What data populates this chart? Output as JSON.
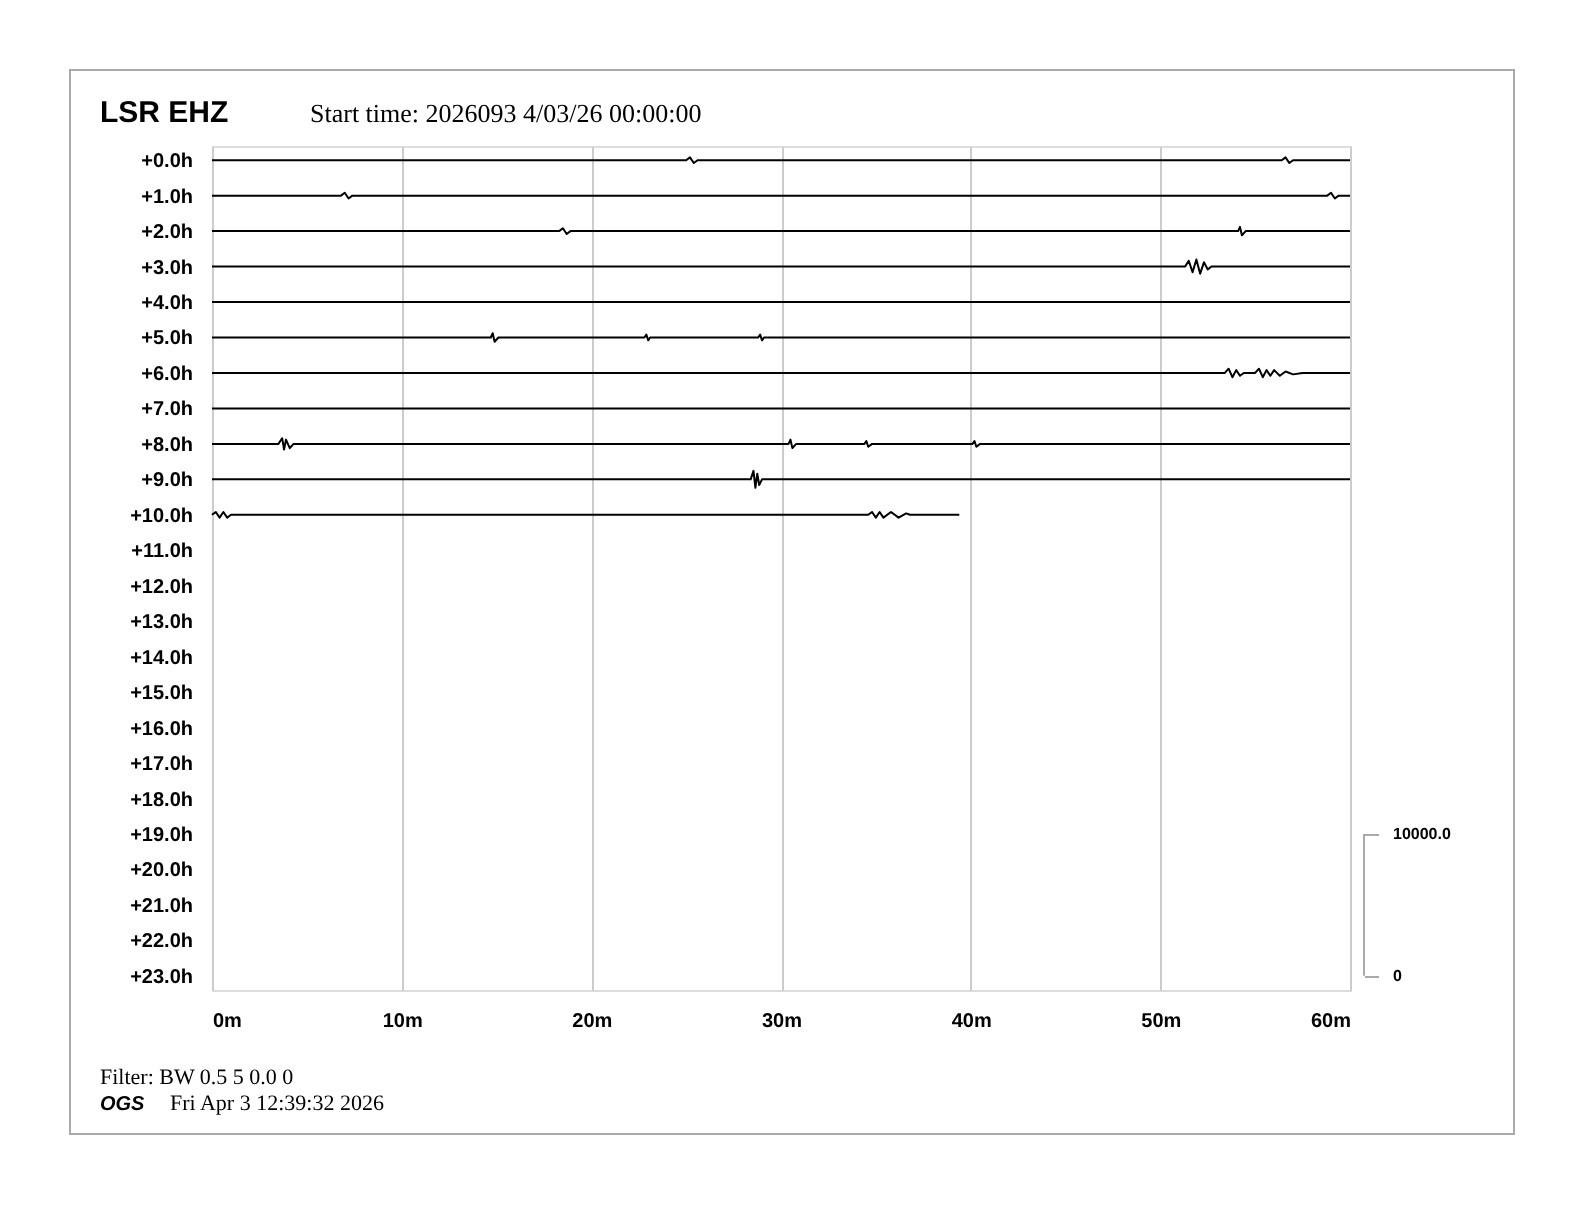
{
  "chart_data": {
    "type": "line",
    "title": "LSR EHZ",
    "subtitle": "Start time: 2026093  4/03/26 00:00:00",
    "annotations": [
      "Filter: BW 0.5 5 0.0 0",
      "OGS",
      "Fri Apr  3 12:39:32 2026"
    ],
    "xlim": [
      0,
      60
    ],
    "xticks": [
      {
        "value": 0,
        "label": "0m"
      },
      {
        "value": 10,
        "label": "10m"
      },
      {
        "value": 20,
        "label": "20m"
      },
      {
        "value": 30,
        "label": "30m"
      },
      {
        "value": 40,
        "label": "40m"
      },
      {
        "value": 50,
        "label": "50m"
      },
      {
        "value": 60,
        "label": "60m"
      }
    ],
    "ylim": [
      23.4,
      -0.4
    ],
    "yticks": [
      {
        "value": 0,
        "label": "+0.0h"
      },
      {
        "value": 1,
        "label": "+1.0h"
      },
      {
        "value": 2,
        "label": "+2.0h"
      },
      {
        "value": 3,
        "label": "+3.0h"
      },
      {
        "value": 4,
        "label": "+4.0h"
      },
      {
        "value": 5,
        "label": "+5.0h"
      },
      {
        "value": 6,
        "label": "+6.0h"
      },
      {
        "value": 7,
        "label": "+7.0h"
      },
      {
        "value": 8,
        "label": "+8.0h"
      },
      {
        "value": 9,
        "label": "+9.0h"
      },
      {
        "value": 10,
        "label": "+10.0h"
      },
      {
        "value": 11,
        "label": "+11.0h"
      },
      {
        "value": 12,
        "label": "+12.0h"
      },
      {
        "value": 13,
        "label": "+13.0h"
      },
      {
        "value": 14,
        "label": "+14.0h"
      },
      {
        "value": 15,
        "label": "+15.0h"
      },
      {
        "value": 16,
        "label": "+16.0h"
      },
      {
        "value": 17,
        "label": "+17.0h"
      },
      {
        "value": 18,
        "label": "+18.0h"
      },
      {
        "value": 19,
        "label": "+19.0h"
      },
      {
        "value": 20,
        "label": "+20.0h"
      },
      {
        "value": 21,
        "label": "+21.0h"
      },
      {
        "value": 22,
        "label": "+22.0h"
      },
      {
        "value": 23,
        "label": "+23.0h"
      }
    ],
    "y2lim": [
      -1000,
      58500
    ],
    "y2ticks": [
      0,
      {
        "value": 10000,
        "label": "10000.0"
      }
    ],
    "grid": "x",
    "series": [
      {
        "axis": "y2",
        "color": "#000000",
        "x": [
          0,
          25,
          25.2,
          25.4,
          25.6,
          56.4,
          56.6,
          56.8,
          57,
          60
        ],
        "values": [
          57500,
          57500,
          57700,
          57300,
          57500,
          57500,
          57700,
          57300,
          57500,
          57500
        ]
      },
      {
        "axis": "y2",
        "color": "#000000",
        "x": [
          0,
          6.8,
          7,
          7.2,
          7.4,
          58.8,
          59,
          59.2,
          59.4,
          60
        ],
        "values": [
          55000,
          55000,
          55200,
          54800,
          55000,
          55000,
          55200,
          54800,
          55000,
          55000
        ]
      },
      {
        "axis": "y2",
        "color": "#000000",
        "x": [
          0,
          18.3,
          18.5,
          18.7,
          18.9,
          54.1,
          54.2,
          54.3,
          54.5,
          60
        ],
        "values": [
          52500,
          52500,
          52700,
          52300,
          52500,
          52500,
          52800,
          52200,
          52500,
          52500
        ]
      },
      {
        "axis": "y2",
        "color": "#000000",
        "x": [
          0,
          51.3,
          51.5,
          51.7,
          51.9,
          52.1,
          52.3,
          52.5,
          52.7,
          60
        ],
        "values": [
          50000,
          50000,
          50400,
          49600,
          50500,
          49500,
          50300,
          49800,
          50000,
          50000
        ]
      },
      {
        "axis": "y2",
        "color": "#000000",
        "x": [
          0,
          60
        ],
        "values": [
          47500,
          47500
        ]
      },
      {
        "axis": "y2",
        "color": "#000000",
        "x": [
          0,
          14.7,
          14.8,
          14.9,
          15.1,
          22.8,
          22.9,
          23,
          23.1,
          28.8,
          28.9,
          29,
          29.1,
          60
        ],
        "values": [
          45000,
          45000,
          45300,
          44700,
          45000,
          45000,
          45200,
          44800,
          45000,
          45000,
          45200,
          44800,
          45000,
          45000
        ]
      },
      {
        "axis": "y2",
        "color": "#000000",
        "x": [
          0,
          53.4,
          53.6,
          53.8,
          54,
          54.2,
          54.4,
          55,
          55.2,
          55.4,
          55.6,
          55.8,
          56,
          56.3,
          56.6,
          57,
          57.5,
          60
        ],
        "values": [
          42500,
          42500,
          42800,
          42200,
          42700,
          42300,
          42500,
          42500,
          42800,
          42200,
          42700,
          42300,
          42700,
          42300,
          42600,
          42400,
          42500,
          42500
        ]
      },
      {
        "axis": "y2",
        "color": "#000000",
        "x": [
          0,
          60
        ],
        "values": [
          40000,
          40000
        ]
      },
      {
        "axis": "y2",
        "color": "#000000",
        "x": [
          0,
          3.5,
          3.7,
          3.8,
          3.9,
          4.1,
          4.3,
          30.4,
          30.5,
          30.6,
          30.8,
          34.4,
          34.5,
          34.6,
          34.8,
          40.1,
          40.2,
          40.3,
          40.5,
          60
        ],
        "values": [
          37500,
          37500,
          37900,
          37100,
          37800,
          37200,
          37500,
          37500,
          37800,
          37200,
          37500,
          37500,
          37700,
          37300,
          37500,
          37500,
          37700,
          37300,
          37500,
          37500
        ]
      },
      {
        "axis": "y2",
        "color": "#000000",
        "x": [
          0,
          28.4,
          28.55,
          28.65,
          28.75,
          28.85,
          29,
          60
        ],
        "values": [
          35000,
          35000,
          35600,
          34400,
          35400,
          34600,
          35000,
          35000
        ]
      },
      {
        "axis": "y2",
        "color": "#000000",
        "x": [
          0,
          0.2,
          0.4,
          0.6,
          0.8,
          1,
          34.6,
          34.8,
          35,
          35.2,
          35.4,
          35.8,
          36.2,
          36.6,
          36.8,
          39.4
        ],
        "values": [
          32500,
          32700,
          32300,
          32700,
          32300,
          32500,
          32500,
          32700,
          32300,
          32700,
          32300,
          32700,
          32300,
          32600,
          32500,
          32500
        ]
      }
    ]
  }
}
